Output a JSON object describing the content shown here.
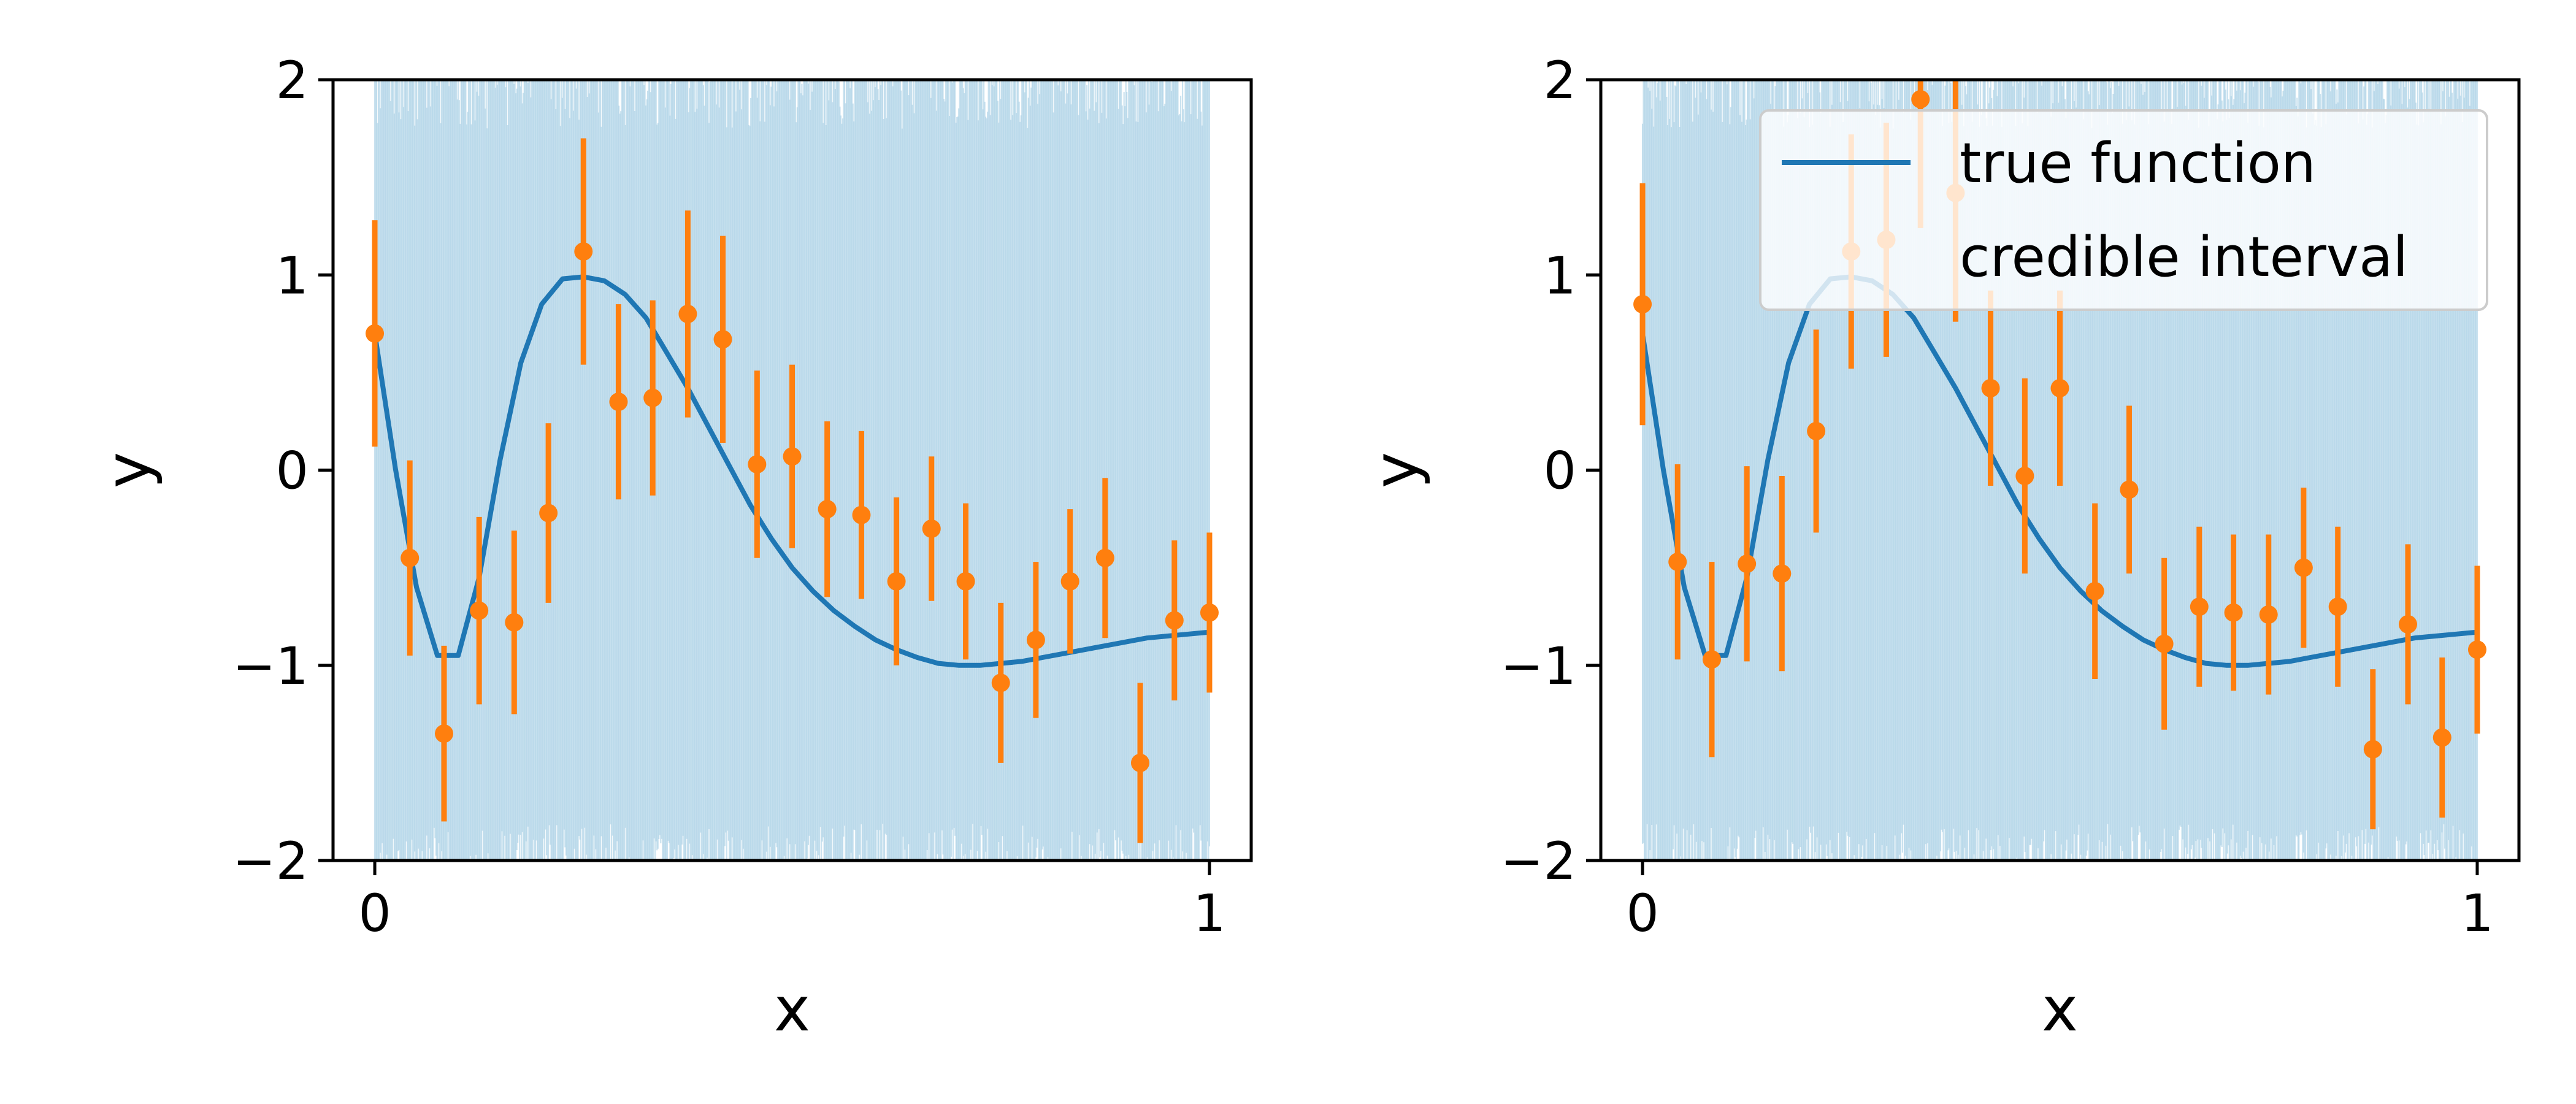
{
  "chart_data": [
    {
      "type": "line",
      "xlabel": "x",
      "ylabel": "y",
      "xlim": [
        -0.05,
        1.05
      ],
      "ylim": [
        -2,
        2
      ],
      "xticks": [
        "0",
        "1"
      ],
      "yticks": [
        "−2",
        "−1",
        "0",
        "1",
        "2"
      ],
      "legend": null,
      "series": [
        {
          "kind": "function-curve",
          "color": "#1f77b4",
          "x": [
            0,
            0.025,
            0.05,
            0.075,
            0.1,
            0.125,
            0.15,
            0.175,
            0.2,
            0.225,
            0.25,
            0.275,
            0.3,
            0.325,
            0.35,
            0.375,
            0.4,
            0.425,
            0.45,
            0.475,
            0.5,
            0.525,
            0.55,
            0.575,
            0.6,
            0.625,
            0.65,
            0.675,
            0.7,
            0.725,
            0.75,
            0.775,
            0.8,
            0.825,
            0.85,
            0.875,
            0.9,
            0.925,
            0.95,
            0.975,
            1
          ],
          "y": [
            0.7,
            0.0,
            -0.6,
            -0.95,
            -0.95,
            -0.55,
            0.05,
            0.55,
            0.85,
            0.98,
            0.99,
            0.97,
            0.9,
            0.78,
            0.6,
            0.42,
            0.22,
            0.02,
            -0.18,
            -0.35,
            -0.5,
            -0.62,
            -0.72,
            -0.8,
            -0.87,
            -0.92,
            -0.96,
            -0.99,
            -1.0,
            -1.0,
            -0.99,
            -0.98,
            -0.96,
            -0.94,
            -0.92,
            -0.9,
            -0.88,
            -0.86,
            -0.85,
            -0.84,
            -0.83
          ]
        },
        {
          "kind": "error-points",
          "color": "#ff7f0e",
          "x": [
            0,
            0.042,
            0.083,
            0.125,
            0.167,
            0.208,
            0.25,
            0.292,
            0.333,
            0.375,
            0.417,
            0.458,
            0.5,
            0.542,
            0.583,
            0.625,
            0.667,
            0.708,
            0.75,
            0.792,
            0.833,
            0.875,
            0.917,
            0.958,
            1
          ],
          "y": [
            0.7,
            -0.45,
            -1.35,
            -0.72,
            -0.78,
            -0.22,
            1.12,
            0.35,
            0.37,
            0.8,
            0.67,
            0.03,
            0.07,
            -0.2,
            -0.23,
            -0.57,
            -0.3,
            -0.57,
            -1.09,
            -0.87,
            -0.57,
            -0.45,
            -1.5,
            -0.77,
            -0.73
          ],
          "err": [
            0.58,
            0.5,
            0.45,
            0.48,
            0.47,
            0.46,
            0.58,
            0.5,
            0.5,
            0.53,
            0.53,
            0.48,
            0.47,
            0.45,
            0.43,
            0.43,
            0.37,
            0.4,
            0.41,
            0.4,
            0.37,
            0.41,
            0.41,
            0.41,
            0.41
          ]
        },
        {
          "kind": "credible-interval-band",
          "color": "#9ecae1"
        }
      ]
    },
    {
      "type": "line",
      "xlabel": "x",
      "ylabel": "y",
      "xlim": [
        -0.05,
        1.05
      ],
      "ylim": [
        -2,
        2
      ],
      "xticks": [
        "0",
        "1"
      ],
      "yticks": [
        "−2",
        "−1",
        "0",
        "1",
        "2"
      ],
      "legend": {
        "position": "top-right",
        "entries": [
          "true function",
          "credible interval"
        ]
      },
      "series": [
        {
          "kind": "function-curve",
          "name": "true function",
          "color": "#1f77b4",
          "x": [
            0,
            0.025,
            0.05,
            0.075,
            0.1,
            0.125,
            0.15,
            0.175,
            0.2,
            0.225,
            0.25,
            0.275,
            0.3,
            0.325,
            0.35,
            0.375,
            0.4,
            0.425,
            0.45,
            0.475,
            0.5,
            0.525,
            0.55,
            0.575,
            0.6,
            0.625,
            0.65,
            0.675,
            0.7,
            0.725,
            0.75,
            0.775,
            0.8,
            0.825,
            0.85,
            0.875,
            0.9,
            0.925,
            0.95,
            0.975,
            1
          ],
          "y": [
            0.7,
            0.0,
            -0.6,
            -0.95,
            -0.95,
            -0.55,
            0.05,
            0.55,
            0.85,
            0.98,
            0.99,
            0.97,
            0.9,
            0.78,
            0.6,
            0.42,
            0.22,
            0.02,
            -0.18,
            -0.35,
            -0.5,
            -0.62,
            -0.72,
            -0.8,
            -0.87,
            -0.92,
            -0.96,
            -0.99,
            -1.0,
            -1.0,
            -0.99,
            -0.98,
            -0.96,
            -0.94,
            -0.92,
            -0.9,
            -0.88,
            -0.86,
            -0.85,
            -0.84,
            -0.83
          ]
        },
        {
          "kind": "error-points",
          "color": "#ff7f0e",
          "x": [
            0,
            0.042,
            0.083,
            0.125,
            0.167,
            0.208,
            0.25,
            0.292,
            0.333,
            0.375,
            0.417,
            0.458,
            0.5,
            0.542,
            0.583,
            0.625,
            0.667,
            0.708,
            0.75,
            0.792,
            0.833,
            0.875,
            0.917,
            0.958,
            1
          ],
          "y": [
            0.85,
            -0.47,
            -0.97,
            -0.48,
            -0.53,
            0.2,
            1.12,
            1.18,
            1.9,
            1.42,
            0.42,
            -0.03,
            0.42,
            -0.62,
            -0.1,
            -0.89,
            -0.7,
            -0.73,
            -0.74,
            -0.5,
            -0.7,
            -1.43,
            -0.79,
            -1.37,
            -0.92
          ],
          "err": [
            0.62,
            0.5,
            0.5,
            0.5,
            0.5,
            0.52,
            0.6,
            0.6,
            0.66,
            0.66,
            0.5,
            0.5,
            0.5,
            0.45,
            0.43,
            0.44,
            0.41,
            0.4,
            0.41,
            0.41,
            0.41,
            0.41,
            0.41,
            0.41,
            0.43
          ]
        },
        {
          "kind": "credible-interval-band",
          "name": "credible interval",
          "color": "#9ecae1"
        }
      ]
    }
  ]
}
